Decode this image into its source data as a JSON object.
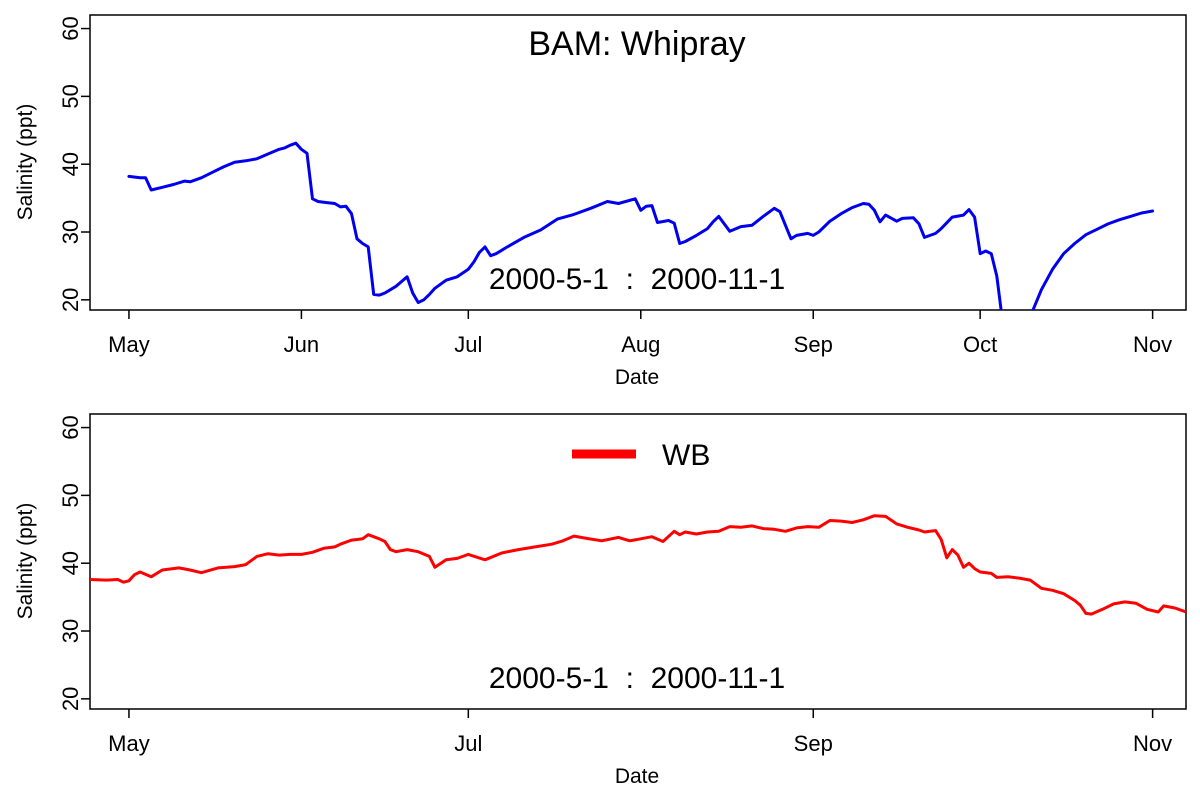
{
  "chart_data": [
    {
      "type": "line",
      "title": "BAM: Whipray",
      "annotation": "2000-5-1  :  2000-11-1",
      "xlabel": "Date",
      "ylabel": "Salinity (ppt)",
      "xlim": [
        "2000-04-24",
        "2000-11-07"
      ],
      "ylim": [
        18.5,
        62
      ],
      "yticks": [
        20,
        30,
        40,
        50,
        60
      ],
      "xticks": [
        {
          "date": "2000-05-01",
          "label": "May"
        },
        {
          "date": "2000-06-01",
          "label": "Jun"
        },
        {
          "date": "2000-07-01",
          "label": "Jul"
        },
        {
          "date": "2000-08-01",
          "label": "Aug"
        },
        {
          "date": "2000-09-01",
          "label": "Sep"
        },
        {
          "date": "2000-10-01",
          "label": "Oct"
        },
        {
          "date": "2000-11-01",
          "label": "Nov"
        }
      ],
      "grid": false,
      "colors": {
        "line": "#0000ee"
      },
      "series": [
        {
          "color": "#0000ee",
          "x": [
            "2000-05-01",
            "2000-05-03",
            "2000-05-04",
            "2000-05-05",
            "2000-05-07",
            "2000-05-09",
            "2000-05-11",
            "2000-05-12",
            "2000-05-14",
            "2000-05-16",
            "2000-05-18",
            "2000-05-20",
            "2000-05-22",
            "2000-05-24",
            "2000-05-26",
            "2000-05-28",
            "2000-05-29",
            "2000-05-30",
            "2000-05-31",
            "2000-06-01",
            "2000-06-02",
            "2000-06-03",
            "2000-06-04",
            "2000-06-05",
            "2000-06-06",
            "2000-06-07",
            "2000-06-08",
            "2000-06-09",
            "2000-06-10",
            "2000-06-11",
            "2000-06-12",
            "2000-06-13",
            "2000-06-14",
            "2000-06-15",
            "2000-06-16",
            "2000-06-17",
            "2000-06-18",
            "2000-06-19",
            "2000-06-20",
            "2000-06-21",
            "2000-06-22",
            "2000-06-23",
            "2000-06-24",
            "2000-06-25",
            "2000-06-27",
            "2000-06-29",
            "2000-07-01",
            "2000-07-02",
            "2000-07-03",
            "2000-07-04",
            "2000-07-05",
            "2000-07-06",
            "2000-07-08",
            "2000-07-11",
            "2000-07-14",
            "2000-07-17",
            "2000-07-20",
            "2000-07-23",
            "2000-07-26",
            "2000-07-28",
            "2000-07-31",
            "2000-08-01",
            "2000-08-02",
            "2000-08-03",
            "2000-08-04",
            "2000-08-06",
            "2000-08-07",
            "2000-08-08",
            "2000-08-09",
            "2000-08-11",
            "2000-08-13",
            "2000-08-14",
            "2000-08-15",
            "2000-08-17",
            "2000-08-19",
            "2000-08-21",
            "2000-08-23",
            "2000-08-25",
            "2000-08-26",
            "2000-08-27",
            "2000-08-28",
            "2000-08-29",
            "2000-08-31",
            "2000-09-01",
            "2000-09-02",
            "2000-09-04",
            "2000-09-06",
            "2000-09-08",
            "2000-09-10",
            "2000-09-11",
            "2000-09-12",
            "2000-09-13",
            "2000-09-14",
            "2000-09-16",
            "2000-09-17",
            "2000-09-19",
            "2000-09-20",
            "2000-09-21",
            "2000-09-23",
            "2000-09-24",
            "2000-09-26",
            "2000-09-28",
            "2000-09-29",
            "2000-09-30",
            "2000-10-01",
            "2000-10-02",
            "2000-10-03",
            "2000-10-04",
            "2000-10-05",
            "2000-10-06"
          ],
          "values": [
            38.2,
            38.0,
            38.0,
            36.2,
            36.6,
            37.0,
            37.5,
            37.4,
            38.0,
            38.8,
            39.6,
            40.3,
            40.5,
            40.8,
            41.5,
            42.2,
            42.4,
            42.8,
            43.1,
            42.2,
            41.6,
            34.9,
            34.5,
            34.4,
            34.3,
            34.2,
            33.7,
            33.8,
            32.7,
            29.0,
            28.3,
            27.8,
            20.8,
            20.7,
            21.0,
            21.5,
            22.0,
            22.7,
            23.4,
            21.0,
            19.6,
            20.0,
            20.8,
            21.7,
            22.9,
            23.4,
            24.5,
            25.6,
            27.0,
            27.8,
            26.5,
            26.8,
            27.8,
            29.2,
            30.3,
            31.9,
            32.6,
            33.5,
            34.5,
            34.2,
            34.9,
            33.2,
            33.8,
            33.9,
            31.4,
            31.7,
            31.3,
            28.3,
            28.6,
            29.5,
            30.5,
            31.5,
            32.3,
            30.1,
            30.8,
            31.0,
            32.3,
            33.5,
            33.0,
            31.0,
            29.0,
            29.5,
            29.8,
            29.5,
            30.0,
            31.6,
            32.7,
            33.6,
            34.2,
            34.1,
            33.2,
            31.5,
            32.5,
            31.6,
            32.0,
            32.1,
            31.2,
            29.2,
            29.8,
            30.5,
            32.2,
            32.5,
            33.3,
            32.2,
            26.8,
            27.2,
            26.8,
            23.5,
            17.0,
            14.0
          ]
        },
        {
          "color": "#0000ee",
          "x": [
            "2000-10-09",
            "2000-10-10",
            "2000-10-12",
            "2000-10-14",
            "2000-10-16",
            "2000-10-18",
            "2000-10-20",
            "2000-10-22",
            "2000-10-24",
            "2000-10-26",
            "2000-10-28",
            "2000-10-30",
            "2000-11-01"
          ],
          "values": [
            14.0,
            17.5,
            21.5,
            24.5,
            26.8,
            28.3,
            29.6,
            30.4,
            31.2,
            31.8,
            32.3,
            32.8,
            33.1
          ]
        }
      ]
    },
    {
      "type": "line",
      "annotation": "2000-5-1  :  2000-11-1",
      "xlabel": "Date",
      "ylabel": "Salinity (ppt)",
      "xlim": [
        "2000-04-24",
        "2000-11-07"
      ],
      "ylim": [
        18.5,
        62
      ],
      "yticks": [
        20,
        30,
        40,
        50,
        60
      ],
      "xticks": [
        {
          "date": "2000-05-01",
          "label": "May"
        },
        {
          "date": "2000-07-01",
          "label": "Jul"
        },
        {
          "date": "2000-09-01",
          "label": "Sep"
        },
        {
          "date": "2000-11-01",
          "label": "Nov"
        }
      ],
      "grid": false,
      "legend": {
        "placement": "top-center",
        "entries": [
          "WB"
        ]
      },
      "colors": {
        "line": "#ff0000"
      },
      "series": [
        {
          "name": "WB",
          "color": "#ff0000",
          "x": [
            "2000-04-24",
            "2000-04-27",
            "2000-04-29",
            "2000-04-30",
            "2000-05-01",
            "2000-05-02",
            "2000-05-03",
            "2000-05-05",
            "2000-05-07",
            "2000-05-10",
            "2000-05-12",
            "2000-05-14",
            "2000-05-17",
            "2000-05-20",
            "2000-05-22",
            "2000-05-24",
            "2000-05-26",
            "2000-05-28",
            "2000-05-30",
            "2000-06-01",
            "2000-06-03",
            "2000-06-05",
            "2000-06-07",
            "2000-06-08",
            "2000-06-10",
            "2000-06-11",
            "2000-06-12",
            "2000-06-13",
            "2000-06-15",
            "2000-06-16",
            "2000-06-17",
            "2000-06-18",
            "2000-06-20",
            "2000-06-22",
            "2000-06-24",
            "2000-06-25",
            "2000-06-27",
            "2000-06-29",
            "2000-07-01",
            "2000-07-04",
            "2000-07-07",
            "2000-07-10",
            "2000-07-13",
            "2000-07-16",
            "2000-07-18",
            "2000-07-20",
            "2000-07-22",
            "2000-07-25",
            "2000-07-28",
            "2000-07-30",
            "2000-08-01",
            "2000-08-03",
            "2000-08-05",
            "2000-08-07",
            "2000-08-08",
            "2000-08-09",
            "2000-08-11",
            "2000-08-13",
            "2000-08-15",
            "2000-08-17",
            "2000-08-19",
            "2000-08-21",
            "2000-08-23",
            "2000-08-25",
            "2000-08-27",
            "2000-08-29",
            "2000-08-31",
            "2000-09-02",
            "2000-09-04",
            "2000-09-06",
            "2000-09-08",
            "2000-09-10",
            "2000-09-12",
            "2000-09-14",
            "2000-09-16",
            "2000-09-18",
            "2000-09-20",
            "2000-09-21",
            "2000-09-22",
            "2000-09-23",
            "2000-09-24",
            "2000-09-25",
            "2000-09-26",
            "2000-09-27",
            "2000-09-28",
            "2000-09-29",
            "2000-09-30",
            "2000-10-01",
            "2000-10-03",
            "2000-10-04",
            "2000-10-06",
            "2000-10-08",
            "2000-10-10",
            "2000-10-12",
            "2000-10-14",
            "2000-10-16",
            "2000-10-18",
            "2000-10-19",
            "2000-10-20",
            "2000-10-21",
            "2000-10-23",
            "2000-10-25",
            "2000-10-27",
            "2000-10-29",
            "2000-10-31",
            "2000-11-02",
            "2000-11-03",
            "2000-11-05",
            "2000-11-07"
          ],
          "values": [
            37.6,
            37.5,
            37.6,
            37.2,
            37.4,
            38.3,
            38.7,
            38.0,
            39.0,
            39.3,
            39.0,
            38.6,
            39.3,
            39.5,
            39.8,
            41.0,
            41.4,
            41.2,
            41.3,
            41.3,
            41.6,
            42.2,
            42.4,
            42.8,
            43.4,
            43.5,
            43.6,
            44.2,
            43.6,
            43.2,
            42.0,
            41.7,
            42.0,
            41.7,
            41.0,
            39.4,
            40.5,
            40.7,
            41.3,
            40.5,
            41.5,
            42.0,
            42.4,
            42.8,
            43.3,
            44.0,
            43.7,
            43.3,
            43.8,
            43.3,
            43.6,
            43.9,
            43.2,
            44.7,
            44.2,
            44.6,
            44.3,
            44.6,
            44.7,
            45.4,
            45.3,
            45.5,
            45.1,
            45.0,
            44.7,
            45.2,
            45.4,
            45.3,
            46.3,
            46.2,
            46.0,
            46.4,
            47.0,
            46.9,
            45.8,
            45.3,
            44.9,
            44.6,
            44.7,
            44.8,
            43.5,
            40.8,
            42.0,
            41.2,
            39.4,
            40.0,
            39.2,
            38.7,
            38.5,
            37.9,
            38.0,
            37.8,
            37.5,
            36.3,
            36.0,
            35.5,
            34.5,
            33.8,
            32.6,
            32.5,
            33.2,
            34.0,
            34.3,
            34.1,
            33.2,
            32.8,
            33.7,
            33.4,
            32.8
          ]
        }
      ]
    }
  ]
}
